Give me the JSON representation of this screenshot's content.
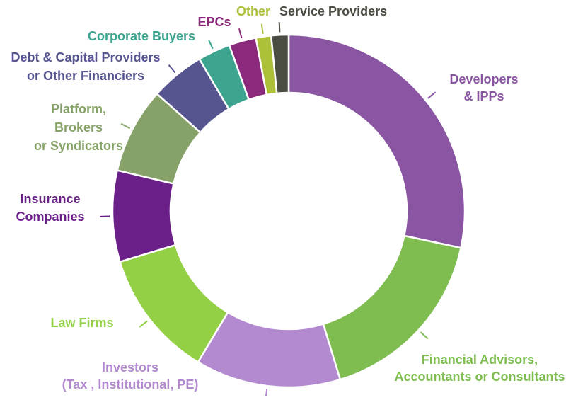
{
  "chart_data": {
    "type": "pie",
    "variant": "donut",
    "legend": "none",
    "slices": [
      {
        "label": "Developers\n& IPPs",
        "value": 28.5,
        "color": "#8a55a3"
      },
      {
        "label": "Financial Advisors,\nAccountants or Consultants",
        "value": 17.0,
        "color": "#7fbd50"
      },
      {
        "label": "Investors\n(Tax , Institutional, PE)",
        "value": 13.4,
        "color": "#b389d0"
      },
      {
        "label": "Law Firms",
        "value": 11.8,
        "color": "#93d045"
      },
      {
        "label": "Insurance\nCompanies",
        "value": 8.4,
        "color": "#6b1f89"
      },
      {
        "label": "Platform,\nBrokers\nor Syndicators",
        "value": 7.9,
        "color": "#86a268"
      },
      {
        "label": "Debt & Capital Providers\nor Other Financiers",
        "value": 5.0,
        "color": "#565590"
      },
      {
        "label": "Corporate Buyers",
        "value": 3.0,
        "color": "#3ca48f"
      },
      {
        "label": "EPCs",
        "value": 2.5,
        "color": "#8b2a7c"
      },
      {
        "label": "Other",
        "value": 1.4,
        "color": "#aebf3a"
      },
      {
        "label": "Service Providers",
        "value": 1.6,
        "color": "#4a4d42"
      }
    ]
  }
}
